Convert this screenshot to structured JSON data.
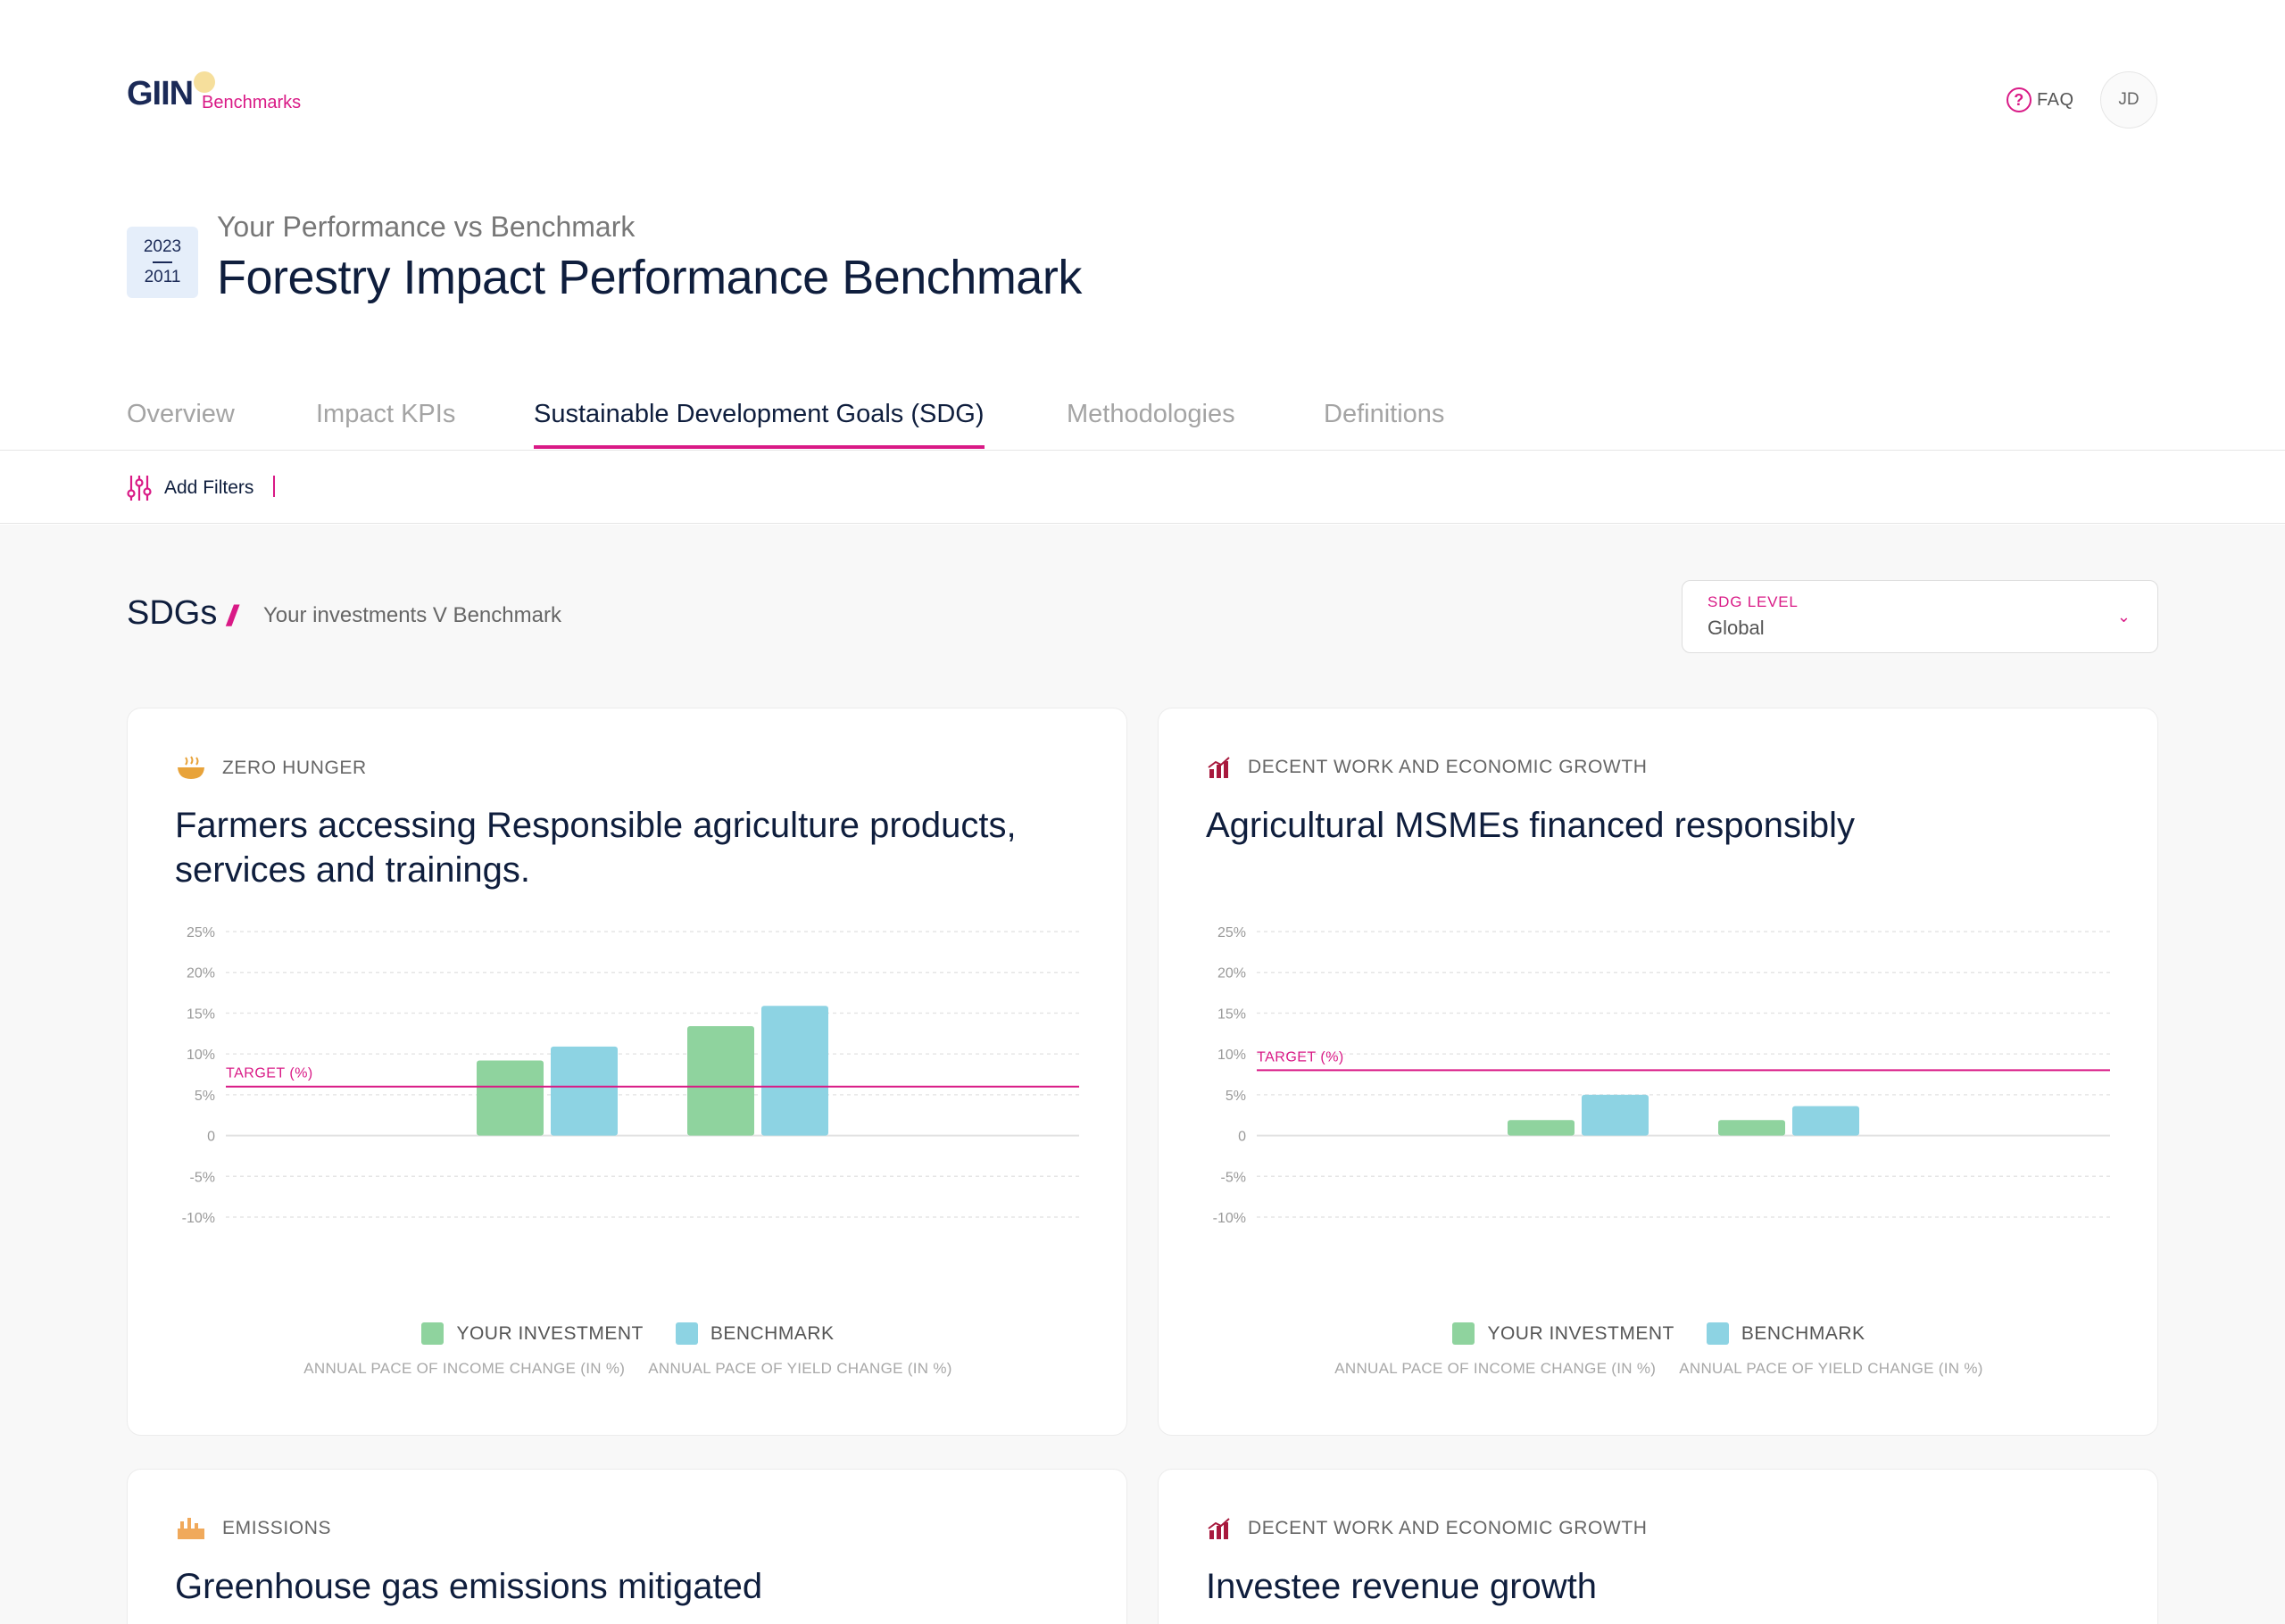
{
  "header": {
    "logo_main": "GIIN",
    "logo_sub": "Benchmarks",
    "faq_label": "FAQ",
    "avatar_initials": "JD"
  },
  "report": {
    "year_top": "2023",
    "year_bottom": "2011",
    "subtitle": "Your Performance vs Benchmark",
    "title": "Forestry Impact Performance Benchmark"
  },
  "tabs": [
    {
      "label": "Overview",
      "active": false
    },
    {
      "label": "Impact KPIs",
      "active": false
    },
    {
      "label": "Sustainable Development Goals (SDG)",
      "active": true
    },
    {
      "label": "Methodologies",
      "active": false
    },
    {
      "label": "Definitions",
      "active": false
    }
  ],
  "filters": {
    "label": "Add Filters"
  },
  "section": {
    "title": "SDGs",
    "subtitle": "Your investments V Benchmark",
    "sdg_level_label": "SDG LEVEL",
    "sdg_level_value": "Global"
  },
  "colors": {
    "your_investment": "#8fd39e",
    "benchmark": "#8dd3e3",
    "target": "#d91a86",
    "accent": "#d91a86"
  },
  "cards": [
    {
      "category": "ZERO HUNGER",
      "icon": "bowl-icon",
      "title": "Farmers accessing Responsible agriculture products, services and trainings.",
      "legend": [
        "YOUR INVESTMENT",
        "BENCHMARK"
      ],
      "chart_data": {
        "type": "bar",
        "categories": [
          "ANNUAL PACE OF INCOME CHANGE (IN %)",
          "ANNUAL PACE OF YIELD CHANGE (IN %)"
        ],
        "series": [
          {
            "name": "YOUR INVESTMENT",
            "values": [
              9.2,
              13.4
            ]
          },
          {
            "name": "BENCHMARK",
            "values": [
              10.9,
              15.9
            ]
          }
        ],
        "target": 6.0,
        "target_label": "TARGET (%)",
        "yticks": [
          "25%",
          "20%",
          "15%",
          "10%",
          "5%",
          "0",
          "-5%",
          "-10%"
        ],
        "ylim": [
          -10,
          25
        ]
      }
    },
    {
      "category": "DECENT WORK AND ECONOMIC GROWTH",
      "icon": "growth-chart-icon",
      "title": "Agricultural MSMEs financed responsibly",
      "legend": [
        "YOUR INVESTMENT",
        "BENCHMARK"
      ],
      "chart_data": {
        "type": "bar",
        "categories": [
          "ANNUAL PACE OF INCOME CHANGE (IN %)",
          "ANNUAL PACE OF YIELD CHANGE (IN %)"
        ],
        "series": [
          {
            "name": "YOUR INVESTMENT",
            "values": [
              1.9,
              1.9
            ]
          },
          {
            "name": "BENCHMARK",
            "values": [
              5.0,
              3.6
            ]
          }
        ],
        "target": 8.0,
        "target_label": "TARGET (%)",
        "yticks": [
          "25%",
          "20%",
          "15%",
          "10%",
          "5%",
          "0",
          "-5%",
          "-10%"
        ],
        "ylim": [
          -10,
          25
        ]
      }
    },
    {
      "category": "EMISSIONS",
      "icon": "factory-icon",
      "title": "Greenhouse gas emissions mitigated"
    },
    {
      "category": "DECENT WORK AND ECONOMIC GROWTH",
      "icon": "growth-chart-icon",
      "title": "Investee revenue growth"
    }
  ]
}
